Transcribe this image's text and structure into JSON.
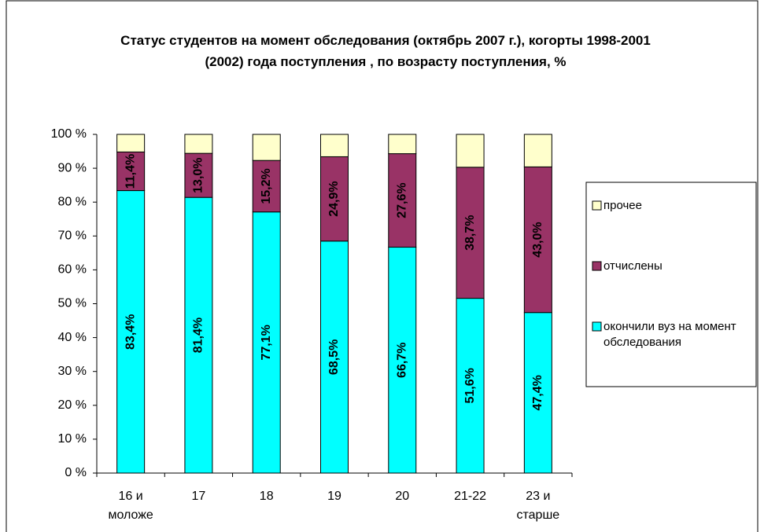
{
  "chart_data": {
    "type": "stacked_bar",
    "title": "Статус студентов на момент обследования (октябрь 2007 г.), когорты 1998-2001 (2002) года поступления , по возрасту поступления, %",
    "categories": [
      "16 и моложе",
      "17",
      "18",
      "19",
      "20",
      "21-22",
      "23 и старше"
    ],
    "series": [
      {
        "name": "окончили вуз на момент обследования",
        "color": "#00ffff",
        "label_color": "#000000",
        "values": [
          83.4,
          81.4,
          77.1,
          68.5,
          66.7,
          51.6,
          47.4
        ],
        "value_labels": [
          "83,4%",
          "81,4%",
          "77,1%",
          "68,5%",
          "66,7%",
          "51,6%",
          "47,4%"
        ]
      },
      {
        "name": "отчислены",
        "color": "#993366",
        "label_color": "#ffffff",
        "values": [
          11.4,
          13.0,
          15.2,
          24.9,
          27.6,
          38.7,
          43.0
        ],
        "value_labels": [
          "11,4%",
          "13,0%",
          "15,2%",
          "24,9%",
          "27,6%",
          "38,7%",
          "43,0%"
        ]
      },
      {
        "name": "прочее",
        "color": "#ffffcc",
        "values": [
          5.2,
          5.6,
          7.7,
          6.6,
          5.7,
          9.7,
          9.6
        ]
      }
    ],
    "ylim": [
      0,
      100
    ],
    "yticks": [
      {
        "value": 0,
        "label": "0 %"
      },
      {
        "value": 10,
        "label": "10 %"
      },
      {
        "value": 20,
        "label": "20 %"
      },
      {
        "value": 30,
        "label": "30 %"
      },
      {
        "value": 40,
        "label": "40 %"
      },
      {
        "value": 50,
        "label": "50 %"
      },
      {
        "value": 60,
        "label": "60 %"
      },
      {
        "value": 70,
        "label": "70 %"
      },
      {
        "value": 80,
        "label": "80 %"
      },
      {
        "value": 90,
        "label": "90 %"
      },
      {
        "value": 100,
        "label": "100 %"
      }
    ],
    "legend": "right",
    "grid": false
  }
}
